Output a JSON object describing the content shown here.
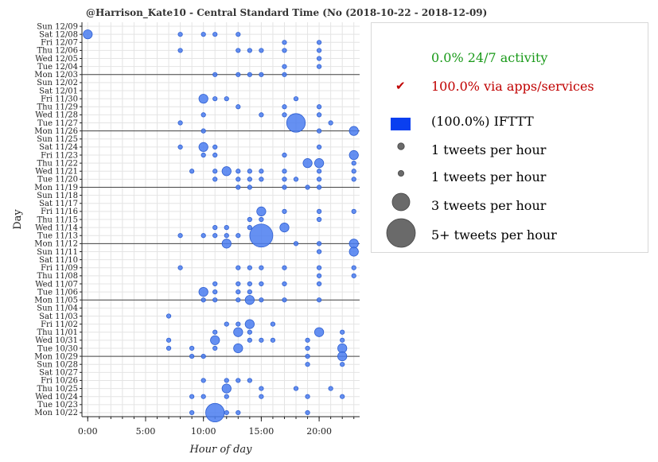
{
  "title": "@Harrison_Kate10 - Central Standard Time (No",
  "date_range": "(2018-10-22 - 2018-12-09)",
  "legend": {
    "activity": {
      "text": "0.0% 24/7 activity",
      "color": "#1a9a1a"
    },
    "apps": {
      "mark": "✔",
      "text": "100.0% via apps/services",
      "color": "#c00000"
    },
    "source": {
      "text": "(100.0%) IFTTT",
      "color": "#0a3ff0"
    },
    "sizes": [
      {
        "label": "1 tweets per hour",
        "count": 1
      },
      {
        "label": "1 tweets per hour",
        "count": 1
      },
      {
        "label": "3 tweets per hour",
        "count": 3
      },
      {
        "label": "5+ tweets per hour",
        "count": 5
      }
    ]
  },
  "chart_data": {
    "type": "scatter",
    "xlabel": "Hour of day",
    "ylabel": "Day",
    "x_ticks": [
      "0:00",
      "5:00",
      "10:00",
      "15:00",
      "20:00"
    ],
    "x_tick_values": [
      0,
      5,
      10,
      15,
      20
    ],
    "xlim": [
      -0.5,
      23.5
    ],
    "days": [
      "Sun 12/09",
      "Sat 12/08",
      "Fri 12/07",
      "Thu 12/06",
      "Wed 12/05",
      "Tue 12/04",
      "Mon 12/03",
      "Sun 12/02",
      "Sat 12/01",
      "Fri 11/30",
      "Thu 11/29",
      "Wed 11/28",
      "Tue 11/27",
      "Mon 11/26",
      "Sun 11/25",
      "Sat 11/24",
      "Fri 11/23",
      "Thu 11/22",
      "Wed 11/21",
      "Tue 11/20",
      "Mon 11/19",
      "Sun 11/18",
      "Sat 11/17",
      "Fri 11/16",
      "Thu 11/15",
      "Wed 11/14",
      "Tue 11/13",
      "Mon 11/12",
      "Sun 11/11",
      "Sat 11/10",
      "Fri 11/09",
      "Thu 11/08",
      "Wed 11/07",
      "Tue 11/06",
      "Mon 11/05",
      "Sun 11/04",
      "Sat 11/03",
      "Fri 11/02",
      "Thu 11/01",
      "Wed 10/31",
      "Tue 10/30",
      "Mon 10/29",
      "Sun 10/28",
      "Sat 10/27",
      "Fri 10/26",
      "Thu 10/25",
      "Wed 10/24",
      "Tue 10/23",
      "Mon 10/22"
    ],
    "week_separators": [
      "Mon 12/03",
      "Mon 11/26",
      "Mon 11/19",
      "Mon 11/12",
      "Mon 11/05",
      "Mon 10/29"
    ],
    "color": "#4a7cf0",
    "points": [
      {
        "day": "Sat 12/08",
        "hour": 0,
        "count": 2
      },
      {
        "day": "Sat 12/08",
        "hour": 8,
        "count": 1
      },
      {
        "day": "Sat 12/08",
        "hour": 10,
        "count": 1
      },
      {
        "day": "Sat 12/08",
        "hour": 11,
        "count": 1
      },
      {
        "day": "Sat 12/08",
        "hour": 13,
        "count": 1
      },
      {
        "day": "Fri 12/07",
        "hour": 17,
        "count": 1
      },
      {
        "day": "Fri 12/07",
        "hour": 20,
        "count": 1
      },
      {
        "day": "Thu 12/06",
        "hour": 8,
        "count": 1
      },
      {
        "day": "Thu 12/06",
        "hour": 13,
        "count": 1
      },
      {
        "day": "Thu 12/06",
        "hour": 14,
        "count": 1
      },
      {
        "day": "Thu 12/06",
        "hour": 15,
        "count": 1
      },
      {
        "day": "Thu 12/06",
        "hour": 17,
        "count": 1
      },
      {
        "day": "Thu 12/06",
        "hour": 20,
        "count": 1
      },
      {
        "day": "Wed 12/05",
        "hour": 20,
        "count": 1
      },
      {
        "day": "Tue 12/04",
        "hour": 17,
        "count": 1
      },
      {
        "day": "Tue 12/04",
        "hour": 20,
        "count": 1
      },
      {
        "day": "Mon 12/03",
        "hour": 11,
        "count": 1
      },
      {
        "day": "Mon 12/03",
        "hour": 13,
        "count": 1
      },
      {
        "day": "Mon 12/03",
        "hour": 14,
        "count": 1
      },
      {
        "day": "Mon 12/03",
        "hour": 15,
        "count": 1
      },
      {
        "day": "Mon 12/03",
        "hour": 17,
        "count": 1
      },
      {
        "day": "Fri 11/30",
        "hour": 10,
        "count": 2
      },
      {
        "day": "Fri 11/30",
        "hour": 11,
        "count": 1
      },
      {
        "day": "Fri 11/30",
        "hour": 12,
        "count": 1
      },
      {
        "day": "Fri 11/30",
        "hour": 18,
        "count": 1
      },
      {
        "day": "Thu 11/29",
        "hour": 13,
        "count": 1
      },
      {
        "day": "Thu 11/29",
        "hour": 17,
        "count": 1
      },
      {
        "day": "Thu 11/29",
        "hour": 20,
        "count": 1
      },
      {
        "day": "Wed 11/28",
        "hour": 10,
        "count": 1
      },
      {
        "day": "Wed 11/28",
        "hour": 15,
        "count": 1
      },
      {
        "day": "Wed 11/28",
        "hour": 17,
        "count": 1
      },
      {
        "day": "Wed 11/28",
        "hour": 20,
        "count": 1
      },
      {
        "day": "Tue 11/27",
        "hour": 8,
        "count": 1
      },
      {
        "day": "Tue 11/27",
        "hour": 18,
        "count": 4
      },
      {
        "day": "Tue 11/27",
        "hour": 21,
        "count": 1
      },
      {
        "day": "Mon 11/26",
        "hour": 10,
        "count": 1
      },
      {
        "day": "Mon 11/26",
        "hour": 20,
        "count": 1
      },
      {
        "day": "Mon 11/26",
        "hour": 23,
        "count": 2
      },
      {
        "day": "Sat 11/24",
        "hour": 8,
        "count": 1
      },
      {
        "day": "Sat 11/24",
        "hour": 10,
        "count": 2
      },
      {
        "day": "Sat 11/24",
        "hour": 11,
        "count": 1
      },
      {
        "day": "Sat 11/24",
        "hour": 20,
        "count": 1
      },
      {
        "day": "Fri 11/23",
        "hour": 10,
        "count": 1
      },
      {
        "day": "Fri 11/23",
        "hour": 11,
        "count": 1
      },
      {
        "day": "Fri 11/23",
        "hour": 17,
        "count": 1
      },
      {
        "day": "Fri 11/23",
        "hour": 23,
        "count": 2
      },
      {
        "day": "Thu 11/22",
        "hour": 19,
        "count": 2
      },
      {
        "day": "Thu 11/22",
        "hour": 20,
        "count": 2
      },
      {
        "day": "Thu 11/22",
        "hour": 23,
        "count": 1
      },
      {
        "day": "Wed 11/21",
        "hour": 9,
        "count": 1
      },
      {
        "day": "Wed 11/21",
        "hour": 11,
        "count": 1
      },
      {
        "day": "Wed 11/21",
        "hour": 12,
        "count": 2
      },
      {
        "day": "Wed 11/21",
        "hour": 13,
        "count": 1
      },
      {
        "day": "Wed 11/21",
        "hour": 14,
        "count": 1
      },
      {
        "day": "Wed 11/21",
        "hour": 15,
        "count": 1
      },
      {
        "day": "Wed 11/21",
        "hour": 17,
        "count": 1
      },
      {
        "day": "Wed 11/21",
        "hour": 20,
        "count": 1
      },
      {
        "day": "Wed 11/21",
        "hour": 23,
        "count": 1
      },
      {
        "day": "Tue 11/20",
        "hour": 11,
        "count": 1
      },
      {
        "day": "Tue 11/20",
        "hour": 13,
        "count": 1
      },
      {
        "day": "Tue 11/20",
        "hour": 14,
        "count": 1
      },
      {
        "day": "Tue 11/20",
        "hour": 15,
        "count": 1
      },
      {
        "day": "Tue 11/20",
        "hour": 17,
        "count": 1
      },
      {
        "day": "Tue 11/20",
        "hour": 18,
        "count": 1
      },
      {
        "day": "Tue 11/20",
        "hour": 20,
        "count": 1
      },
      {
        "day": "Tue 11/20",
        "hour": 23,
        "count": 1
      },
      {
        "day": "Mon 11/19",
        "hour": 13,
        "count": 1
      },
      {
        "day": "Mon 11/19",
        "hour": 14,
        "count": 1
      },
      {
        "day": "Mon 11/19",
        "hour": 17,
        "count": 1
      },
      {
        "day": "Mon 11/19",
        "hour": 19,
        "count": 1
      },
      {
        "day": "Mon 11/19",
        "hour": 20,
        "count": 1
      },
      {
        "day": "Fri 11/16",
        "hour": 15,
        "count": 2
      },
      {
        "day": "Fri 11/16",
        "hour": 17,
        "count": 1
      },
      {
        "day": "Fri 11/16",
        "hour": 20,
        "count": 1
      },
      {
        "day": "Fri 11/16",
        "hour": 23,
        "count": 1
      },
      {
        "day": "Thu 11/15",
        "hour": 14,
        "count": 1
      },
      {
        "day": "Thu 11/15",
        "hour": 15,
        "count": 1
      },
      {
        "day": "Thu 11/15",
        "hour": 20,
        "count": 1
      },
      {
        "day": "Wed 11/14",
        "hour": 11,
        "count": 1
      },
      {
        "day": "Wed 11/14",
        "hour": 12,
        "count": 1
      },
      {
        "day": "Wed 11/14",
        "hour": 14,
        "count": 1
      },
      {
        "day": "Wed 11/14",
        "hour": 17,
        "count": 2
      },
      {
        "day": "Tue 11/13",
        "hour": 8,
        "count": 1
      },
      {
        "day": "Tue 11/13",
        "hour": 10,
        "count": 1
      },
      {
        "day": "Tue 11/13",
        "hour": 11,
        "count": 1
      },
      {
        "day": "Tue 11/13",
        "hour": 12,
        "count": 1
      },
      {
        "day": "Tue 11/13",
        "hour": 13,
        "count": 1
      },
      {
        "day": "Tue 11/13",
        "hour": 15,
        "count": 5
      },
      {
        "day": "Mon 11/12",
        "hour": 12,
        "count": 2
      },
      {
        "day": "Mon 11/12",
        "hour": 18,
        "count": 1
      },
      {
        "day": "Mon 11/12",
        "hour": 20,
        "count": 1
      },
      {
        "day": "Mon 11/12",
        "hour": 23,
        "count": 2
      },
      {
        "day": "Sun 11/11",
        "hour": 20,
        "count": 1
      },
      {
        "day": "Sun 11/11",
        "hour": 23,
        "count": 2
      },
      {
        "day": "Fri 11/09",
        "hour": 8,
        "count": 1
      },
      {
        "day": "Fri 11/09",
        "hour": 13,
        "count": 1
      },
      {
        "day": "Fri 11/09",
        "hour": 14,
        "count": 1
      },
      {
        "day": "Fri 11/09",
        "hour": 15,
        "count": 1
      },
      {
        "day": "Fri 11/09",
        "hour": 17,
        "count": 1
      },
      {
        "day": "Fri 11/09",
        "hour": 20,
        "count": 1
      },
      {
        "day": "Fri 11/09",
        "hour": 23,
        "count": 1
      },
      {
        "day": "Thu 11/08",
        "hour": 20,
        "count": 1
      },
      {
        "day": "Thu 11/08",
        "hour": 23,
        "count": 1
      },
      {
        "day": "Wed 11/07",
        "hour": 11,
        "count": 1
      },
      {
        "day": "Wed 11/07",
        "hour": 13,
        "count": 1
      },
      {
        "day": "Wed 11/07",
        "hour": 14,
        "count": 1
      },
      {
        "day": "Wed 11/07",
        "hour": 15,
        "count": 1
      },
      {
        "day": "Wed 11/07",
        "hour": 17,
        "count": 1
      },
      {
        "day": "Wed 11/07",
        "hour": 20,
        "count": 1
      },
      {
        "day": "Tue 11/06",
        "hour": 10,
        "count": 2
      },
      {
        "day": "Tue 11/06",
        "hour": 11,
        "count": 1
      },
      {
        "day": "Tue 11/06",
        "hour": 13,
        "count": 1
      },
      {
        "day": "Tue 11/06",
        "hour": 14,
        "count": 1
      },
      {
        "day": "Mon 11/05",
        "hour": 10,
        "count": 1
      },
      {
        "day": "Mon 11/05",
        "hour": 11,
        "count": 1
      },
      {
        "day": "Mon 11/05",
        "hour": 13,
        "count": 1
      },
      {
        "day": "Mon 11/05",
        "hour": 14,
        "count": 2
      },
      {
        "day": "Mon 11/05",
        "hour": 15,
        "count": 1
      },
      {
        "day": "Mon 11/05",
        "hour": 17,
        "count": 1
      },
      {
        "day": "Mon 11/05",
        "hour": 20,
        "count": 1
      },
      {
        "day": "Sat 11/03",
        "hour": 7,
        "count": 1
      },
      {
        "day": "Fri 11/02",
        "hour": 12,
        "count": 1
      },
      {
        "day": "Fri 11/02",
        "hour": 13,
        "count": 1
      },
      {
        "day": "Fri 11/02",
        "hour": 14,
        "count": 2
      },
      {
        "day": "Fri 11/02",
        "hour": 16,
        "count": 1
      },
      {
        "day": "Thu 11/01",
        "hour": 11,
        "count": 1
      },
      {
        "day": "Thu 11/01",
        "hour": 13,
        "count": 2
      },
      {
        "day": "Thu 11/01",
        "hour": 14,
        "count": 1
      },
      {
        "day": "Thu 11/01",
        "hour": 20,
        "count": 2
      },
      {
        "day": "Thu 11/01",
        "hour": 22,
        "count": 1
      },
      {
        "day": "Wed 10/31",
        "hour": 7,
        "count": 1
      },
      {
        "day": "Wed 10/31",
        "hour": 11,
        "count": 2
      },
      {
        "day": "Wed 10/31",
        "hour": 14,
        "count": 1
      },
      {
        "day": "Wed 10/31",
        "hour": 15,
        "count": 1
      },
      {
        "day": "Wed 10/31",
        "hour": 16,
        "count": 1
      },
      {
        "day": "Wed 10/31",
        "hour": 19,
        "count": 1
      },
      {
        "day": "Wed 10/31",
        "hour": 22,
        "count": 1
      },
      {
        "day": "Tue 10/30",
        "hour": 7,
        "count": 1
      },
      {
        "day": "Tue 10/30",
        "hour": 9,
        "count": 1
      },
      {
        "day": "Tue 10/30",
        "hour": 11,
        "count": 1
      },
      {
        "day": "Tue 10/30",
        "hour": 13,
        "count": 2
      },
      {
        "day": "Tue 10/30",
        "hour": 19,
        "count": 1
      },
      {
        "day": "Tue 10/30",
        "hour": 22,
        "count": 2
      },
      {
        "day": "Mon 10/29",
        "hour": 9,
        "count": 1
      },
      {
        "day": "Mon 10/29",
        "hour": 10,
        "count": 1
      },
      {
        "day": "Mon 10/29",
        "hour": 19,
        "count": 1
      },
      {
        "day": "Mon 10/29",
        "hour": 22,
        "count": 2
      },
      {
        "day": "Sun 10/28",
        "hour": 19,
        "count": 1
      },
      {
        "day": "Sun 10/28",
        "hour": 22,
        "count": 1
      },
      {
        "day": "Fri 10/26",
        "hour": 10,
        "count": 1
      },
      {
        "day": "Fri 10/26",
        "hour": 12,
        "count": 1
      },
      {
        "day": "Fri 10/26",
        "hour": 13,
        "count": 1
      },
      {
        "day": "Fri 10/26",
        "hour": 14,
        "count": 1
      },
      {
        "day": "Thu 10/25",
        "hour": 12,
        "count": 2
      },
      {
        "day": "Thu 10/25",
        "hour": 15,
        "count": 1
      },
      {
        "day": "Thu 10/25",
        "hour": 18,
        "count": 1
      },
      {
        "day": "Thu 10/25",
        "hour": 21,
        "count": 1
      },
      {
        "day": "Wed 10/24",
        "hour": 9,
        "count": 1
      },
      {
        "day": "Wed 10/24",
        "hour": 10,
        "count": 1
      },
      {
        "day": "Wed 10/24",
        "hour": 12,
        "count": 1
      },
      {
        "day": "Wed 10/24",
        "hour": 15,
        "count": 1
      },
      {
        "day": "Wed 10/24",
        "hour": 19,
        "count": 1
      },
      {
        "day": "Wed 10/24",
        "hour": 22,
        "count": 1
      },
      {
        "day": "Mon 10/22",
        "hour": 9,
        "count": 1
      },
      {
        "day": "Mon 10/22",
        "hour": 11,
        "count": 4
      },
      {
        "day": "Mon 10/22",
        "hour": 12,
        "count": 1
      },
      {
        "day": "Mon 10/22",
        "hour": 13,
        "count": 1
      },
      {
        "day": "Mon 10/22",
        "hour": 19,
        "count": 1
      }
    ]
  }
}
